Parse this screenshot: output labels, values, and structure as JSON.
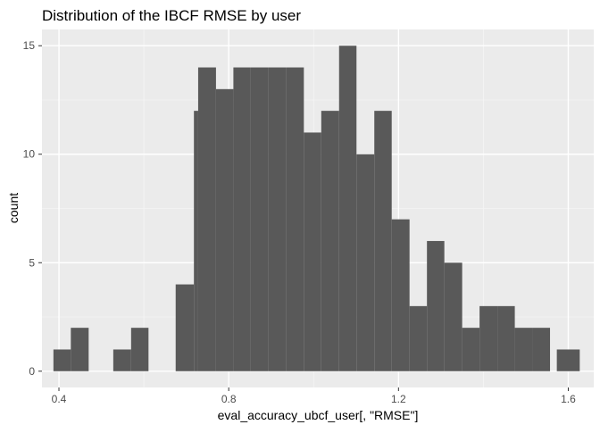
{
  "chart_data": {
    "type": "bar",
    "histogram": true,
    "title": "Distribution of the IBCF RMSE by user",
    "xlabel": "eval_accuracy_ubcf_user[, \"RMSE\"]",
    "ylabel": "count",
    "xlim": [
      0.36,
      1.66
    ],
    "ylim": [
      -0.75,
      15.75
    ],
    "x_ticks": [
      0.4,
      0.8,
      1.2,
      1.6
    ],
    "x_tick_labels": [
      "0.4",
      "0.8",
      "1.2",
      "1.6"
    ],
    "y_ticks": [
      0,
      5,
      10,
      15
    ],
    "y_tick_labels": [
      "0",
      "5",
      "10",
      "15"
    ],
    "grid": true,
    "legend": "none",
    "bin_width": 0.0414,
    "bins": [
      {
        "x0": 0.387,
        "x1": 0.428,
        "count": 1
      },
      {
        "x0": 0.428,
        "x1": 0.47,
        "count": 2
      },
      {
        "x0": 0.528,
        "x1": 0.57,
        "count": 1
      },
      {
        "x0": 0.57,
        "x1": 0.611,
        "count": 2
      },
      {
        "x0": 0.675,
        "x1": 0.718,
        "count": 4
      },
      {
        "x0": 0.718,
        "x1": 0.728,
        "count": 12
      },
      {
        "x0": 0.728,
        "x1": 0.77,
        "count": 14
      },
      {
        "x0": 0.77,
        "x1": 0.811,
        "count": 13
      },
      {
        "x0": 0.811,
        "x1": 0.852,
        "count": 14
      },
      {
        "x0": 0.852,
        "x1": 0.894,
        "count": 14
      },
      {
        "x0": 0.894,
        "x1": 0.935,
        "count": 14
      },
      {
        "x0": 0.935,
        "x1": 0.977,
        "count": 14
      },
      {
        "x0": 0.977,
        "x1": 1.018,
        "count": 11
      },
      {
        "x0": 1.018,
        "x1": 1.06,
        "count": 12
      },
      {
        "x0": 1.06,
        "x1": 1.101,
        "count": 15
      },
      {
        "x0": 1.101,
        "x1": 1.143,
        "count": 10
      },
      {
        "x0": 1.143,
        "x1": 1.184,
        "count": 12
      },
      {
        "x0": 1.184,
        "x1": 1.226,
        "count": 7
      },
      {
        "x0": 1.226,
        "x1": 1.267,
        "count": 3
      },
      {
        "x0": 1.267,
        "x1": 1.308,
        "count": 6
      },
      {
        "x0": 1.308,
        "x1": 1.35,
        "count": 5
      },
      {
        "x0": 1.35,
        "x1": 1.391,
        "count": 2
      },
      {
        "x0": 1.391,
        "x1": 1.433,
        "count": 3
      },
      {
        "x0": 1.433,
        "x1": 1.474,
        "count": 3
      },
      {
        "x0": 1.474,
        "x1": 1.516,
        "count": 2
      },
      {
        "x0": 1.516,
        "x1": 1.557,
        "count": 2
      },
      {
        "x0": 1.573,
        "x1": 1.627,
        "count": 1
      }
    ],
    "colors": {
      "panel": "#ebebeb",
      "gridMajor": "#ffffff",
      "gridMinor": "#f5f5f5",
      "bar": "#595959",
      "text": "#000000",
      "tick": "#4d4d4d",
      "axisTick": "#333333"
    }
  }
}
